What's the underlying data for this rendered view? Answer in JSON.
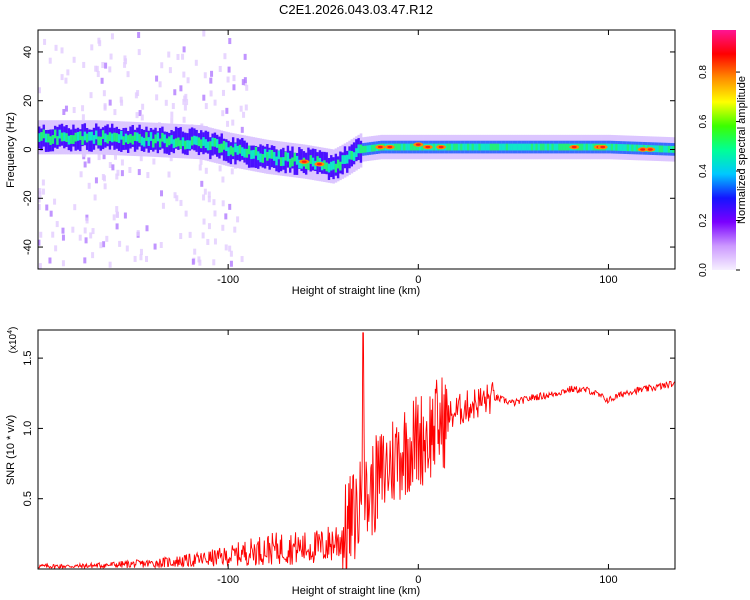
{
  "title": "C2E1.2026.043.03.47.R12",
  "chart_data": [
    {
      "type": "heatmap",
      "xlabel": "Height of straight line (km)",
      "ylabel": "Frequency (Hz)",
      "xlim": [
        -200,
        135
      ],
      "ylim": [
        -49,
        49
      ],
      "xticks": [
        -100,
        0,
        100
      ],
      "yticks": [
        -40,
        -20,
        0,
        20,
        40
      ],
      "colorbar": {
        "label": "Normalized spectral amplitude",
        "range": [
          0,
          0.97
        ],
        "ticks": [
          "0.0",
          "0.2",
          "0.4",
          "0.6",
          "0.8"
        ],
        "tick_values": [
          0.0,
          0.2,
          0.4,
          0.6,
          0.8
        ],
        "colors": [
          "#f6f0ff",
          "#cc99ff",
          "#7a00ff",
          "#1414ff",
          "#00c8ff",
          "#00ff96",
          "#3cff00",
          "#ffff00",
          "#ff8c00",
          "#ff0000",
          "#ff1493"
        ]
      },
      "ridge_frequency": [
        {
          "x": -200,
          "y": 5
        },
        {
          "x": -170,
          "y": 5
        },
        {
          "x": -140,
          "y": 4
        },
        {
          "x": -115,
          "y": 3
        },
        {
          "x": -100,
          "y": 0
        },
        {
          "x": -80,
          "y": -3
        },
        {
          "x": -60,
          "y": -5
        },
        {
          "x": -45,
          "y": -7
        },
        {
          "x": -38,
          "y": -4
        },
        {
          "x": -30,
          "y": 0
        },
        {
          "x": -20,
          "y": 1
        },
        {
          "x": 0,
          "y": 1
        },
        {
          "x": 40,
          "y": 1
        },
        {
          "x": 80,
          "y": 1
        },
        {
          "x": 100,
          "y": 1
        },
        {
          "x": 135,
          "y": 0
        }
      ]
    },
    {
      "type": "line",
      "xlabel": "Height of straight line (km)",
      "ylabel": "SNR (10 * v/v)",
      "y_multiplier": "(x10",
      "y_multiplier_exp": "4",
      "y_multiplier_close": ")",
      "xlim": [
        -200,
        135
      ],
      "ylim": [
        0,
        1.7
      ],
      "xticks": [
        -100,
        0,
        100
      ],
      "yticks": [
        0.5,
        1.0,
        1.5
      ],
      "ytick_labels": [
        "0.5",
        "1.0",
        "1.5"
      ],
      "series": [
        {
          "color": "#ff0000",
          "x": [
            -200,
            -180,
            -160,
            -140,
            -120,
            -100,
            -90,
            -80,
            -70,
            -60,
            -50,
            -40,
            -35,
            -30,
            -29,
            -28,
            -25,
            -20,
            -15,
            -10,
            -5,
            0,
            5,
            10,
            20,
            30,
            40,
            50,
            60,
            70,
            80,
            90,
            100,
            110,
            120,
            135
          ],
          "y": [
            0.02,
            0.02,
            0.03,
            0.04,
            0.06,
            0.09,
            0.12,
            0.14,
            0.15,
            0.15,
            0.16,
            0.22,
            0.35,
            0.45,
            1.68,
            0.45,
            0.55,
            0.65,
            0.75,
            0.82,
            0.88,
            0.92,
            0.95,
            1.02,
            1.12,
            1.18,
            1.22,
            1.18,
            1.22,
            1.24,
            1.28,
            1.27,
            1.2,
            1.26,
            1.28,
            1.32
          ]
        }
      ]
    }
  ]
}
